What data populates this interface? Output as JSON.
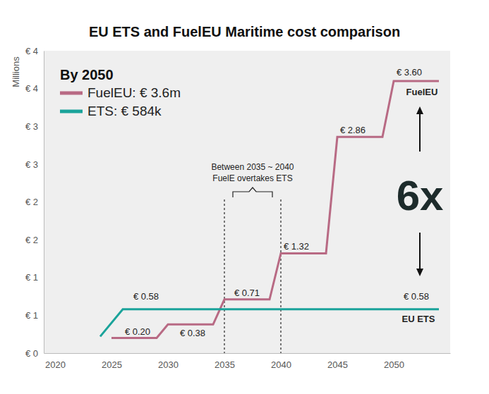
{
  "chart_data": {
    "type": "line",
    "title": "EU ETS and FuelEU Maritime cost comparison",
    "y_label": "Millions",
    "legend_title": "By 2050",
    "legend": "upper left",
    "grid": false,
    "data_labels": true,
    "xlim": [
      2019,
      2055
    ],
    "xticks": [
      2020,
      2025,
      2030,
      2035,
      2040,
      2045,
      2050
    ],
    "ylim": [
      0,
      4
    ],
    "yticks": [
      {
        "value": 0,
        "label": "€ 0"
      },
      {
        "value": 0.5,
        "label": "€ 1"
      },
      {
        "value": 1,
        "label": "€ 1"
      },
      {
        "value": 1.5,
        "label": "€ 2"
      },
      {
        "value": 2,
        "label": "€ 2"
      },
      {
        "value": 2.5,
        "label": "€ 3"
      },
      {
        "value": 3,
        "label": "€ 3"
      },
      {
        "value": 3.5,
        "label": "€ 4"
      },
      {
        "value": 4,
        "label": "€ 4"
      }
    ],
    "series": [
      {
        "name": "FuelEU: € 3.6m",
        "end_label": "FuelEU",
        "color": "#b86a84",
        "line_style": "solid",
        "x": [
          2025,
          2029,
          2030,
          2034,
          2035,
          2039,
          2040,
          2044,
          2045,
          2049,
          2050,
          2054
        ],
        "values": [
          0.2,
          0.2,
          0.38,
          0.38,
          0.71,
          0.71,
          1.32,
          1.32,
          2.86,
          2.86,
          3.6,
          3.6
        ],
        "value_labels": [
          "€ 0.20",
          null,
          "€ 0.38",
          null,
          "€ 0.71",
          null,
          "€ 1.32",
          null,
          "€ 2.86",
          null,
          "€ 3.60",
          null
        ]
      },
      {
        "name": "ETS: € 584k",
        "end_label": "EU ETS",
        "color": "#1aa39a",
        "line_style": "solid",
        "x": [
          2024,
          2026,
          2054
        ],
        "values": [
          0.22,
          0.58,
          0.58
        ],
        "value_labels": [
          null,
          "€ 0.58",
          "€ 0.58"
        ]
      }
    ],
    "highlight": {
      "range": [
        2035,
        2040
      ],
      "labels": [
        "Between 2035 ~ 2040",
        "FuelE overtakes ETS"
      ]
    },
    "ratio_label": "6x"
  }
}
